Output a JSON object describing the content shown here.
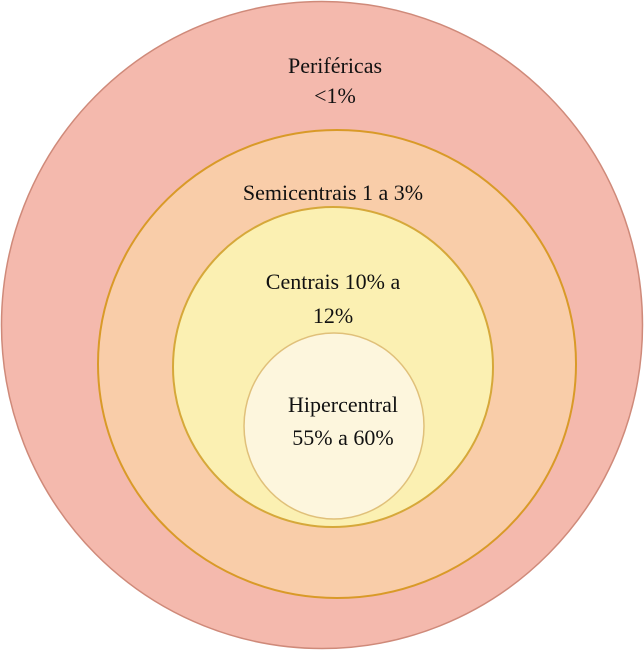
{
  "nodes": [
    {
      "lines": [
        "Periféricas",
        "<1%"
      ]
    },
    {
      "lines": [
        "Semicentrais 1 a 3%"
      ]
    },
    {
      "lines": [
        "Centrais 10% a",
        "12%"
      ]
    },
    {
      "lines": [
        "Hipercentral",
        "55% a 60%"
      ]
    }
  ]
}
